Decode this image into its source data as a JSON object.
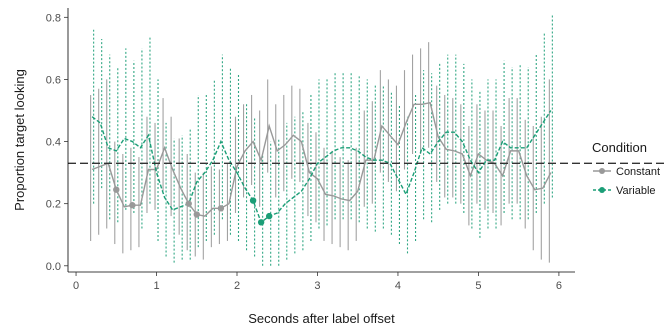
{
  "chart_data": {
    "type": "line",
    "title": "",
    "xlabel": "Seconds after label offset",
    "ylabel": "Proportion target looking",
    "xlim": [
      -0.1,
      6.2
    ],
    "ylim": [
      -0.02,
      0.83
    ],
    "x_ticks": [
      0,
      1,
      2,
      3,
      4,
      5,
      6
    ],
    "x_tick_labels": [
      "0",
      "1",
      "2",
      "3",
      "4",
      "5",
      "6"
    ],
    "y_ticks": [
      0.0,
      0.2,
      0.4,
      0.6,
      0.8
    ],
    "y_tick_labels": [
      "0.0",
      "0.2",
      "0.4",
      "0.6",
      "0.8"
    ],
    "grid": false,
    "reference_line": {
      "y": 0.33,
      "style": "dashed",
      "color": "#333333"
    },
    "legend": {
      "title": "Condition",
      "position": "right",
      "entries": [
        "Constant",
        "Variable"
      ]
    },
    "series": [
      {
        "name": "Constant",
        "color": "#999999",
        "line_style": "solid",
        "x": [
          0.2,
          0.3,
          0.4,
          0.5,
          0.6,
          0.7,
          0.8,
          0.9,
          1.0,
          1.1,
          1.2,
          1.3,
          1.4,
          1.5,
          1.6,
          1.7,
          1.8,
          1.9,
          2.0,
          2.1,
          2.2,
          2.3,
          2.4,
          2.5,
          2.6,
          2.7,
          2.8,
          2.9,
          3.0,
          3.1,
          3.2,
          3.3,
          3.4,
          3.5,
          3.6,
          3.7,
          3.8,
          3.9,
          4.0,
          4.1,
          4.2,
          4.3,
          4.4,
          4.5,
          4.6,
          4.7,
          4.8,
          4.9,
          5.0,
          5.1,
          5.2,
          5.3,
          5.4,
          5.5,
          5.6,
          5.7,
          5.8,
          5.9
        ],
        "y": [
          0.31,
          0.32,
          0.33,
          0.245,
          0.19,
          0.195,
          0.195,
          0.31,
          0.31,
          0.38,
          0.31,
          0.25,
          0.2,
          0.165,
          0.16,
          0.185,
          0.185,
          0.2,
          0.32,
          0.37,
          0.4,
          0.34,
          0.45,
          0.37,
          0.39,
          0.42,
          0.4,
          0.3,
          0.28,
          0.23,
          0.225,
          0.215,
          0.21,
          0.24,
          0.34,
          0.34,
          0.45,
          0.42,
          0.39,
          0.46,
          0.52,
          0.52,
          0.525,
          0.415,
          0.375,
          0.37,
          0.36,
          0.29,
          0.36,
          0.34,
          0.33,
          0.29,
          0.37,
          0.37,
          0.29,
          0.245,
          0.25,
          0.3
        ],
        "error_low": [
          0.08,
          0.1,
          0.12,
          0.07,
          0.04,
          0.05,
          0.06,
          0.17,
          0.18,
          0.24,
          0.16,
          0.1,
          0.05,
          0.03,
          0.02,
          0.06,
          0.07,
          0.08,
          0.17,
          0.22,
          0.26,
          0.19,
          0.3,
          0.22,
          0.24,
          0.28,
          0.27,
          0.16,
          0.14,
          0.08,
          0.07,
          0.06,
          0.05,
          0.08,
          0.19,
          0.2,
          0.3,
          0.27,
          0.24,
          0.31,
          0.36,
          0.36,
          0.38,
          0.27,
          0.22,
          0.22,
          0.2,
          0.13,
          0.2,
          0.18,
          0.17,
          0.13,
          0.2,
          0.2,
          0.12,
          0.05,
          0.02,
          0.01
        ],
        "error_high": [
          0.55,
          0.57,
          0.6,
          0.4,
          0.36,
          0.38,
          0.35,
          0.48,
          0.46,
          0.54,
          0.48,
          0.41,
          0.36,
          0.3,
          0.3,
          0.32,
          0.31,
          0.33,
          0.48,
          0.52,
          0.55,
          0.5,
          0.6,
          0.52,
          0.55,
          0.58,
          0.57,
          0.46,
          0.43,
          0.38,
          0.37,
          0.35,
          0.34,
          0.38,
          0.5,
          0.53,
          0.63,
          0.6,
          0.58,
          0.63,
          0.68,
          0.7,
          0.72,
          0.58,
          0.55,
          0.54,
          0.52,
          0.45,
          0.52,
          0.5,
          0.5,
          0.45,
          0.54,
          0.54,
          0.47,
          0.45,
          0.48,
          0.6
        ],
        "highlighted_x": [
          0.5,
          0.7,
          1.4,
          1.5,
          1.8
        ]
      },
      {
        "name": "Variable",
        "color": "#1b9e77",
        "line_style": "dashed",
        "x": [
          0.2,
          0.3,
          0.4,
          0.5,
          0.6,
          0.7,
          0.8,
          0.9,
          1.0,
          1.1,
          1.2,
          1.3,
          1.4,
          1.5,
          1.6,
          1.7,
          1.8,
          1.9,
          2.0,
          2.1,
          2.2,
          2.3,
          2.4,
          2.5,
          2.6,
          2.7,
          2.8,
          2.9,
          3.0,
          3.1,
          3.2,
          3.3,
          3.4,
          3.5,
          3.6,
          3.7,
          3.8,
          3.9,
          4.0,
          4.1,
          4.2,
          4.3,
          4.4,
          4.5,
          4.6,
          4.7,
          4.8,
          4.9,
          5.0,
          5.1,
          5.2,
          5.3,
          5.4,
          5.5,
          5.6,
          5.7,
          5.8,
          5.9
        ],
        "y": [
          0.48,
          0.46,
          0.38,
          0.37,
          0.41,
          0.4,
          0.38,
          0.42,
          0.3,
          0.22,
          0.18,
          0.19,
          0.2,
          0.27,
          0.3,
          0.34,
          0.4,
          0.34,
          0.3,
          0.25,
          0.21,
          0.14,
          0.16,
          0.17,
          0.2,
          0.22,
          0.24,
          0.28,
          0.33,
          0.35,
          0.37,
          0.38,
          0.38,
          0.37,
          0.35,
          0.34,
          0.34,
          0.33,
          0.28,
          0.23,
          0.3,
          0.38,
          0.36,
          0.4,
          0.43,
          0.43,
          0.4,
          0.34,
          0.3,
          0.34,
          0.34,
          0.4,
          0.38,
          0.38,
          0.38,
          0.42,
          0.46,
          0.5
        ],
        "error_low": [
          0.2,
          0.25,
          0.15,
          0.14,
          0.18,
          0.17,
          0.12,
          0.2,
          0.08,
          0.03,
          0.01,
          0.02,
          0.02,
          0.06,
          0.08,
          0.1,
          0.15,
          0.1,
          0.08,
          0.05,
          0.03,
          0.0,
          0.0,
          0.0,
          0.02,
          0.04,
          0.05,
          0.08,
          0.12,
          0.13,
          0.15,
          0.15,
          0.15,
          0.14,
          0.12,
          0.11,
          0.12,
          0.1,
          0.07,
          0.04,
          0.08,
          0.15,
          0.14,
          0.18,
          0.2,
          0.2,
          0.17,
          0.12,
          0.09,
          0.12,
          0.12,
          0.17,
          0.15,
          0.15,
          0.15,
          0.17,
          0.2,
          0.22
        ],
        "error_high": [
          0.76,
          0.73,
          0.68,
          0.64,
          0.7,
          0.66,
          0.7,
          0.74,
          0.6,
          0.46,
          0.41,
          0.42,
          0.44,
          0.55,
          0.55,
          0.6,
          0.68,
          0.64,
          0.62,
          0.52,
          0.48,
          0.36,
          0.4,
          0.41,
          0.46,
          0.48,
          0.5,
          0.55,
          0.6,
          0.6,
          0.62,
          0.62,
          0.62,
          0.61,
          0.6,
          0.58,
          0.58,
          0.56,
          0.52,
          0.48,
          0.55,
          0.63,
          0.62,
          0.65,
          0.68,
          0.68,
          0.65,
          0.6,
          0.56,
          0.6,
          0.6,
          0.66,
          0.64,
          0.65,
          0.64,
          0.68,
          0.75,
          0.81
        ],
        "highlighted_x": [
          2.2,
          2.3,
          2.4
        ]
      }
    ]
  }
}
